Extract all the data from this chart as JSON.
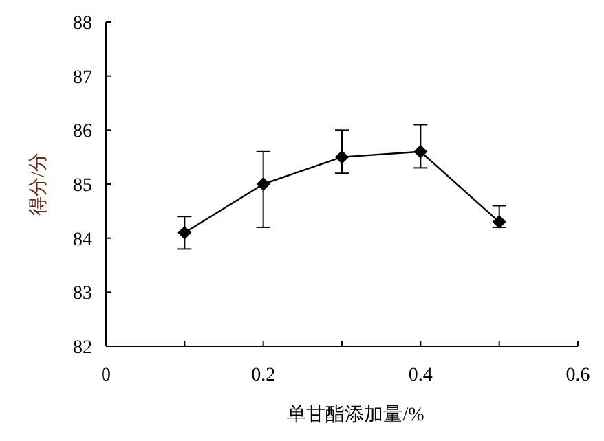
{
  "chart_data": {
    "type": "line",
    "xlabel": "单甘酯添加量/%",
    "ylabel": "得分/分",
    "x": [
      0.1,
      0.2,
      0.3,
      0.4,
      0.5
    ],
    "series": [
      {
        "color": "#000000",
        "values": [
          84.1,
          85.0,
          85.5,
          85.6,
          84.3
        ],
        "errors": [
          [
            83.8,
            84.4
          ],
          [
            84.2,
            85.6
          ],
          [
            85.2,
            86.0
          ],
          [
            85.3,
            86.1
          ],
          [
            84.2,
            84.6
          ]
        ]
      }
    ],
    "xlim": [
      0,
      0.6
    ],
    "xticks": [
      0,
      {
        "value": 0.1,
        "label": null
      },
      0.2,
      {
        "value": 0.3,
        "label": null
      },
      0.4,
      {
        "value": 0.5,
        "label": null
      },
      0.6
    ],
    "ylim": [
      82,
      88
    ],
    "yticks": [
      82,
      83,
      84,
      85,
      86,
      87,
      88
    ],
    "marker": "diamond",
    "line_style": "solid"
  }
}
